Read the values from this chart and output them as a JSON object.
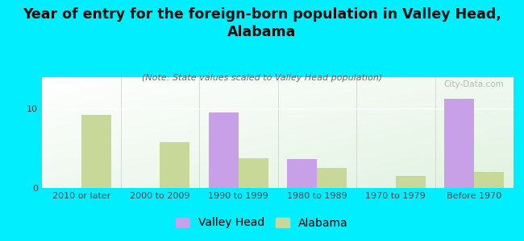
{
  "title": "Year of entry for the foreign-born population in Valley Head,\nAlabama",
  "subtitle": "(Note: State values scaled to Valley Head population)",
  "categories": [
    "2010 or later",
    "2000 to 2009",
    "1990 to 1999",
    "1980 to 1989",
    "1970 to 1979",
    "Before 1970"
  ],
  "valley_head": [
    0,
    0,
    9.5,
    3.7,
    0,
    11.3
  ],
  "alabama": [
    9.2,
    5.8,
    3.8,
    2.5,
    1.5,
    2.0
  ],
  "valley_head_color": "#c8a0e8",
  "alabama_color": "#c8d898",
  "background_outer": "#00eeff",
  "ylim": [
    0,
    14
  ],
  "yticks": [
    0,
    10
  ],
  "bar_width": 0.38,
  "watermark": "City-Data.com",
  "title_fontsize": 12.5,
  "subtitle_fontsize": 8,
  "tick_fontsize": 8,
  "legend_fontsize": 10
}
